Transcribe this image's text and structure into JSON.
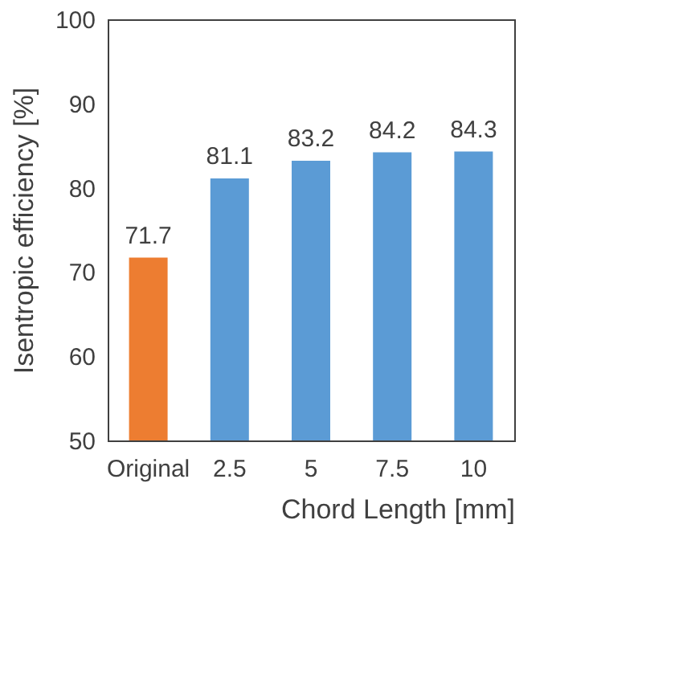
{
  "chart_data": {
    "type": "bar",
    "categories": [
      "Original",
      "2.5",
      "5",
      "7.5",
      "10"
    ],
    "values": [
      71.7,
      81.1,
      83.2,
      84.2,
      84.3
    ],
    "colors": [
      "#ed7d31",
      "#5b9bd5",
      "#5b9bd5",
      "#5b9bd5",
      "#5b9bd5"
    ],
    "xlabel": "Chord Length [mm]",
    "ylabel": "Isentropic efficiency [%]",
    "ylim": [
      50,
      100
    ],
    "yticks": [
      50,
      60,
      70,
      80,
      90,
      100
    ],
    "grid": false,
    "data_labels": true
  }
}
